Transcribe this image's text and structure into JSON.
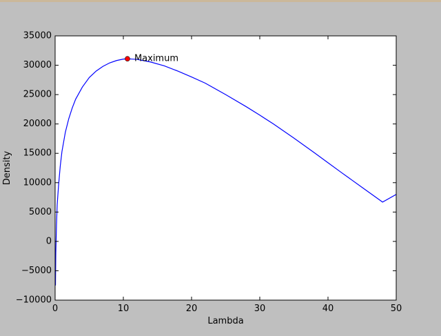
{
  "colors": {
    "figure_background": "#bfbfbf",
    "plot_background": "#ffffff",
    "line": "#0000ff",
    "marker": "#ff0000"
  },
  "chart_data": {
    "type": "line",
    "title": "",
    "xlabel": "Lambda",
    "ylabel": "Density",
    "xlim": [
      0,
      50
    ],
    "ylim": [
      -10000,
      35000
    ],
    "xticks": [
      0,
      10,
      20,
      30,
      40,
      50
    ],
    "xtick_labels": [
      "0",
      "10",
      "20",
      "30",
      "40",
      "50"
    ],
    "yticks": [
      -10000,
      -5000,
      0,
      5000,
      10000,
      15000,
      20000,
      25000,
      30000,
      35000
    ],
    "ytick_labels": [
      "−10000",
      "−5000",
      "0",
      "5000",
      "10000",
      "15000",
      "20000",
      "25000",
      "30000",
      "35000"
    ],
    "grid": false,
    "legend": "none",
    "series": [
      {
        "x": [
          0.05,
          0.1,
          0.2,
          0.3,
          0.5,
          0.75,
          1,
          1.5,
          2,
          2.5,
          3,
          4,
          5,
          6,
          7,
          8,
          9,
          10,
          10.6,
          12,
          14,
          16,
          18,
          20,
          22,
          25,
          28,
          30,
          32,
          35,
          38,
          40,
          42,
          45,
          48,
          50
        ],
        "y": [
          -7500,
          -2000,
          2800,
          6200,
          9500,
          12800,
          15300,
          18600,
          20900,
          22700,
          24200,
          26300,
          27900,
          29000,
          29800,
          30400,
          30800,
          31050,
          31100,
          31000,
          30550,
          29900,
          29000,
          28000,
          26950,
          25000,
          22950,
          21500,
          20000,
          17600,
          15100,
          13400,
          11700,
          9200,
          6700,
          8000
        ]
      }
    ],
    "annotations": [
      {
        "text": "Maximum",
        "x": 10.6,
        "y": 31100
      }
    ]
  }
}
